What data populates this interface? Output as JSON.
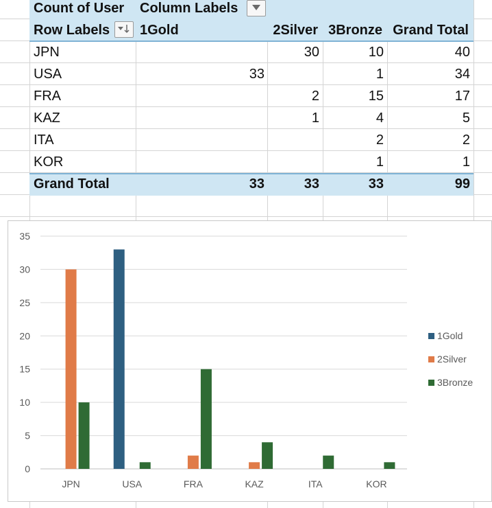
{
  "pivot": {
    "corner_label": "Count of User",
    "column_labels_header": "Column Labels",
    "row_labels_header": "Row Labels",
    "columns": [
      "1Gold",
      "2Silver",
      "3Bronze",
      "Grand Total"
    ],
    "rows": [
      {
        "label": "JPN",
        "gold": "",
        "silver": "30",
        "bronze": "10",
        "total": "40"
      },
      {
        "label": "USA",
        "gold": "33",
        "silver": "",
        "bronze": "1",
        "total": "34"
      },
      {
        "label": "FRA",
        "gold": "",
        "silver": "2",
        "bronze": "15",
        "total": "17"
      },
      {
        "label": "KAZ",
        "gold": "",
        "silver": "1",
        "bronze": "4",
        "total": "5"
      },
      {
        "label": "ITA",
        "gold": "",
        "silver": "",
        "bronze": "2",
        "total": "2"
      },
      {
        "label": "KOR",
        "gold": "",
        "silver": "",
        "bronze": "1",
        "total": "1"
      }
    ],
    "grand_total": {
      "label": "Grand Total",
      "gold": "33",
      "silver": "33",
      "bronze": "33",
      "total": "99"
    },
    "header_color": "#cfe6f3"
  },
  "chart_data": {
    "type": "bar",
    "categories": [
      "JPN",
      "USA",
      "FRA",
      "KAZ",
      "ITA",
      "KOR"
    ],
    "series": [
      {
        "name": "1Gold",
        "color": "#2e5f81",
        "values": [
          0,
          33,
          0,
          0,
          0,
          0
        ]
      },
      {
        "name": "2Silver",
        "color": "#e07b48",
        "values": [
          30,
          0,
          2,
          1,
          0,
          0
        ]
      },
      {
        "name": "3Bronze",
        "color": "#2f6b34",
        "values": [
          10,
          1,
          15,
          4,
          2,
          1
        ]
      }
    ],
    "y_ticks": [
      "0",
      "5",
      "10",
      "15",
      "20",
      "25",
      "30",
      "35"
    ],
    "ylim": [
      0,
      35
    ],
    "grid": true,
    "legend_position": "right"
  }
}
